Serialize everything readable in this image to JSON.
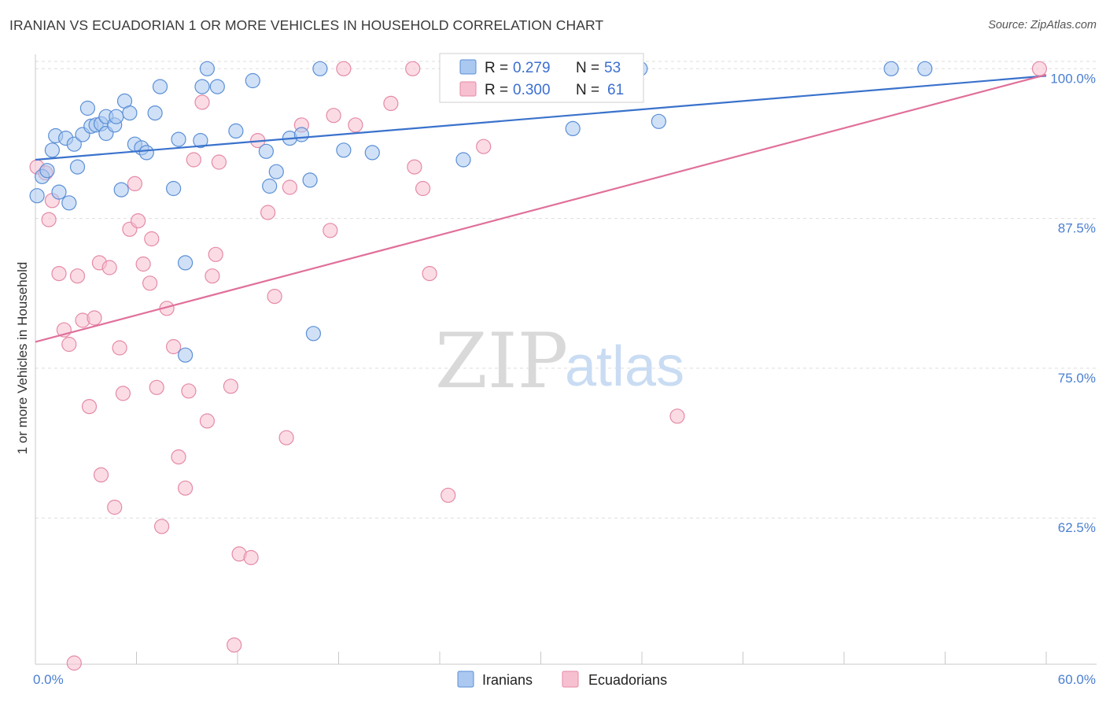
{
  "title": "IRANIAN VS ECUADORIAN 1 OR MORE VEHICLES IN HOUSEHOLD CORRELATION CHART",
  "source": "Source: ZipAtlas.com",
  "watermark": {
    "zip": "ZIP",
    "atlas": "atlas"
  },
  "legend": {
    "rows": [
      {
        "r_label": "R =",
        "r_value": "0.279",
        "n_label": "N =",
        "n_value": "53"
      },
      {
        "r_label": "R =",
        "r_value": "0.300",
        "n_label": "N =",
        "n_value": "61"
      }
    ]
  },
  "bottom_legend": [
    "Iranians",
    "Ecuadorians"
  ],
  "colors": {
    "iranians_fill": "#aac8f0",
    "iranians_stroke": "#5b8fd6",
    "iranians_line": "#3a72cc",
    "ecuadorians_fill": "#f7c0d0",
    "ecuadorians_stroke": "#e58aa6",
    "ecuadorians_line": "#e0709a",
    "tick_label": "#4a7fd0",
    "grid": "#dddddd"
  },
  "chart_data": {
    "type": "scatter",
    "title": "IRANIAN VS ECUADORIAN 1 OR MORE VEHICLES IN HOUSEHOLD CORRELATION CHART",
    "xlabel": "",
    "ylabel": "1 or more Vehicles in Household",
    "xlim": [
      0,
      60
    ],
    "ylim": [
      50.3,
      101.2
    ],
    "x_tick_labels": [
      "0.0%",
      "60.0%"
    ],
    "y_ticks": [
      62.5,
      75.0,
      87.5,
      100.0
    ],
    "y_tick_labels": [
      "62.5%",
      "75.0%",
      "87.5%",
      "100.0%"
    ],
    "grid": true,
    "series": [
      {
        "name": "Iranians",
        "r": 0.279,
        "n": 53,
        "trend": [
          [
            0,
            92.4
          ],
          [
            60,
            99.4
          ]
        ],
        "points": [
          [
            0.1,
            89.4
          ],
          [
            0.4,
            91.0
          ],
          [
            0.7,
            91.5
          ],
          [
            1.0,
            93.2
          ],
          [
            1.2,
            94.4
          ],
          [
            1.4,
            89.7
          ],
          [
            1.8,
            94.2
          ],
          [
            2.0,
            88.8
          ],
          [
            2.3,
            93.7
          ],
          [
            2.5,
            91.8
          ],
          [
            2.8,
            94.5
          ],
          [
            3.1,
            96.7
          ],
          [
            3.3,
            95.2
          ],
          [
            3.6,
            95.3
          ],
          [
            3.9,
            95.4
          ],
          [
            4.2,
            94.6
          ],
          [
            4.2,
            96.0
          ],
          [
            4.7,
            95.3
          ],
          [
            4.8,
            96.0
          ],
          [
            5.1,
            89.9
          ],
          [
            5.3,
            97.3
          ],
          [
            5.6,
            96.3
          ],
          [
            5.9,
            93.7
          ],
          [
            6.3,
            93.4
          ],
          [
            6.6,
            93.0
          ],
          [
            7.1,
            96.3
          ],
          [
            7.4,
            98.5
          ],
          [
            8.2,
            90.0
          ],
          [
            8.5,
            94.1
          ],
          [
            8.9,
            83.8
          ],
          [
            8.9,
            76.1
          ],
          [
            9.8,
            94.0
          ],
          [
            9.9,
            98.5
          ],
          [
            10.2,
            100.0
          ],
          [
            10.8,
            98.5
          ],
          [
            11.9,
            94.8
          ],
          [
            12.9,
            99.0
          ],
          [
            13.7,
            93.1
          ],
          [
            13.9,
            90.2
          ],
          [
            14.3,
            91.4
          ],
          [
            15.1,
            94.2
          ],
          [
            15.8,
            94.5
          ],
          [
            16.3,
            90.7
          ],
          [
            16.5,
            77.9
          ],
          [
            16.9,
            100.0
          ],
          [
            18.3,
            93.2
          ],
          [
            20.0,
            93.0
          ],
          [
            25.4,
            92.4
          ],
          [
            31.9,
            95.0
          ],
          [
            35.9,
            100.0
          ],
          [
            37.0,
            95.6
          ],
          [
            50.8,
            100.0
          ],
          [
            52.8,
            100.0
          ]
        ]
      },
      {
        "name": "Ecuadorians",
        "r": 0.3,
        "n": 61,
        "trend": [
          [
            0,
            77.2
          ],
          [
            60,
            99.5
          ]
        ],
        "points": [
          [
            0.1,
            91.8
          ],
          [
            0.6,
            91.3
          ],
          [
            0.8,
            87.4
          ],
          [
            1.0,
            89.0
          ],
          [
            1.4,
            82.9
          ],
          [
            1.7,
            78.2
          ],
          [
            2.0,
            77.0
          ],
          [
            2.5,
            82.7
          ],
          [
            2.8,
            79.0
          ],
          [
            3.2,
            71.8
          ],
          [
            3.5,
            79.2
          ],
          [
            3.8,
            83.8
          ],
          [
            3.9,
            66.1
          ],
          [
            4.4,
            83.4
          ],
          [
            4.7,
            63.4
          ],
          [
            5.0,
            76.7
          ],
          [
            5.2,
            72.9
          ],
          [
            5.6,
            86.6
          ],
          [
            5.9,
            90.4
          ],
          [
            6.1,
            87.3
          ],
          [
            6.4,
            83.7
          ],
          [
            6.8,
            82.1
          ],
          [
            6.9,
            85.8
          ],
          [
            7.2,
            73.4
          ],
          [
            7.5,
            61.8
          ],
          [
            7.8,
            80.0
          ],
          [
            8.2,
            76.8
          ],
          [
            8.5,
            67.6
          ],
          [
            8.9,
            65.0
          ],
          [
            9.1,
            73.1
          ],
          [
            9.4,
            92.4
          ],
          [
            9.9,
            97.2
          ],
          [
            10.2,
            70.6
          ],
          [
            10.5,
            82.7
          ],
          [
            10.7,
            84.5
          ],
          [
            10.9,
            92.2
          ],
          [
            11.6,
            73.5
          ],
          [
            11.8,
            51.9
          ],
          [
            12.1,
            59.5
          ],
          [
            12.8,
            59.2
          ],
          [
            13.2,
            94.0
          ],
          [
            13.8,
            88.0
          ],
          [
            14.2,
            81.0
          ],
          [
            14.9,
            69.2
          ],
          [
            15.1,
            90.1
          ],
          [
            15.8,
            95.3
          ],
          [
            17.5,
            86.5
          ],
          [
            17.7,
            96.1
          ],
          [
            18.3,
            100.0
          ],
          [
            19.0,
            95.3
          ],
          [
            21.1,
            97.1
          ],
          [
            22.4,
            100.0
          ],
          [
            22.5,
            91.8
          ],
          [
            23.0,
            90.0
          ],
          [
            23.4,
            82.9
          ],
          [
            24.5,
            64.4
          ],
          [
            25.1,
            98.1
          ],
          [
            26.6,
            93.5
          ],
          [
            38.1,
            71.0
          ],
          [
            59.6,
            100.0
          ],
          [
            2.3,
            50.4
          ]
        ]
      }
    ]
  }
}
